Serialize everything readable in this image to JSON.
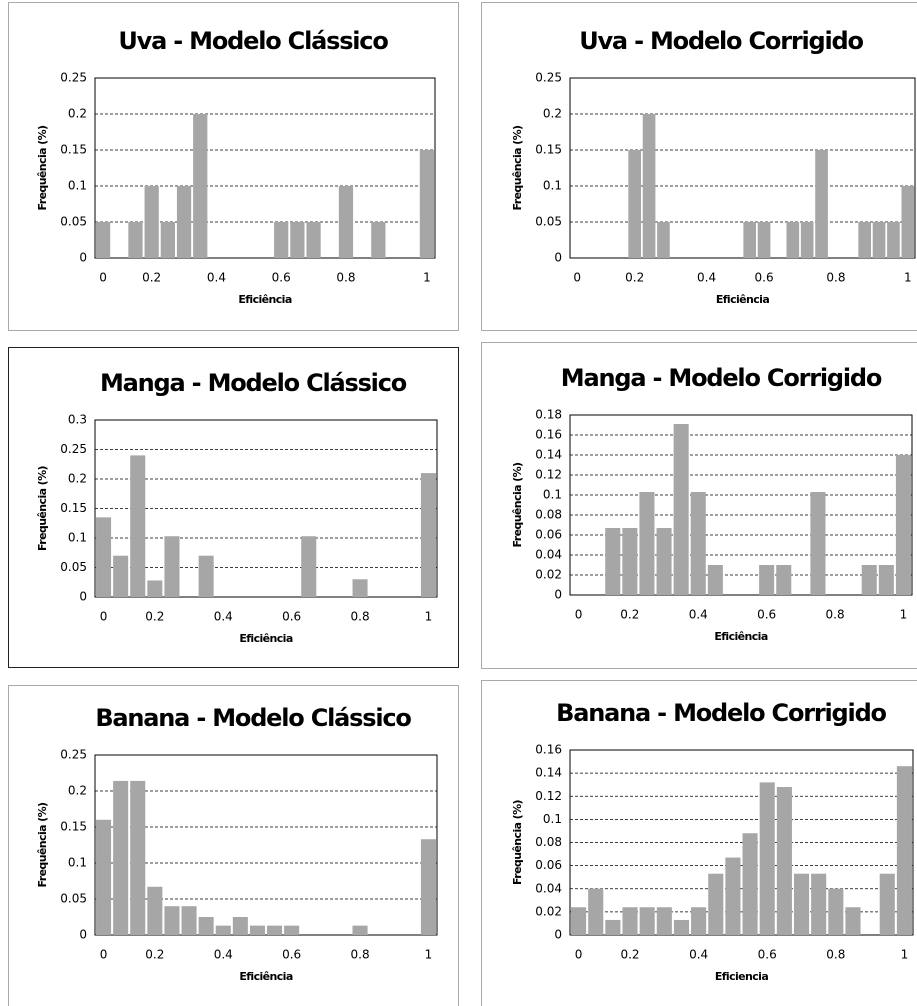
{
  "chart_data": [
    {
      "type": "bar",
      "title": "Uva - Modelo Clássico",
      "xlabel": "Eficiência",
      "ylabel": "Frequência (%)",
      "categories": [
        "0",
        null,
        null,
        "0.2",
        null,
        null,
        null,
        "0.4",
        null,
        null,
        null,
        "0.6",
        null,
        null,
        null,
        "0.8",
        null,
        null,
        null,
        null,
        "1"
      ],
      "values": [
        0.05,
        0,
        0.05,
        0.1,
        0.05,
        0.1,
        0.2,
        0,
        0,
        0,
        0,
        0.05,
        0.05,
        0.05,
        0,
        0.1,
        0,
        0.05,
        0,
        0,
        0.15
      ],
      "color": "#a6a6a6",
      "ylim": [
        0,
        0.25
      ],
      "yticks": [
        0,
        0.05,
        0.1,
        0.15,
        0.2,
        0.25
      ],
      "grid": true
    },
    {
      "type": "bar",
      "title": "Uva - Modelo Corrigido",
      "xlabel": "Eficiência",
      "ylabel": "Frequência (%)",
      "categories": [
        "0",
        null,
        null,
        null,
        "0.2",
        null,
        null,
        null,
        null,
        "0.4",
        null,
        null,
        null,
        "0.6",
        null,
        null,
        null,
        null,
        "0.8",
        null,
        null,
        null,
        null,
        "1"
      ],
      "values": [
        0,
        0,
        0,
        0,
        0.15,
        0.2,
        0.05,
        0,
        0,
        0,
        0,
        0,
        0.05,
        0.05,
        0,
        0.05,
        0.05,
        0.15,
        0,
        0,
        0.05,
        0.05,
        0.05,
        0.1
      ],
      "color": "#a6a6a6",
      "ylim": [
        0,
        0.25
      ],
      "yticks": [
        0,
        0.05,
        0.1,
        0.15,
        0.2,
        0.25
      ],
      "grid": true
    },
    {
      "type": "bar",
      "title": "Manga - Modelo Clássico",
      "xlabel": "Eficiência",
      "ylabel": "Frequência (%)",
      "categories": [
        "0",
        null,
        null,
        "0.2",
        null,
        null,
        null,
        "0.4",
        null,
        null,
        null,
        "0.6",
        null,
        null,
        null,
        "0.8",
        null,
        null,
        null,
        "1"
      ],
      "values": [
        0.135,
        0.07,
        0.24,
        0.028,
        0.103,
        0,
        0.07,
        0,
        0,
        0,
        0,
        0,
        0.103,
        0,
        0,
        0.03,
        0,
        0,
        0,
        0.21
      ],
      "color": "#a6a6a6",
      "ylim": [
        0,
        0.3
      ],
      "yticks": [
        0,
        0.05,
        0.1,
        0.15,
        0.2,
        0.25,
        0.3
      ],
      "grid": true
    },
    {
      "type": "bar",
      "title": "Manga - Modelo Corrigido",
      "xlabel": "Eficiência",
      "ylabel": "Frequência (%)",
      "categories": [
        "0",
        null,
        null,
        "0.2",
        null,
        null,
        null,
        "0.4",
        null,
        null,
        null,
        "0.6",
        null,
        null,
        null,
        "0.8",
        null,
        null,
        null,
        "1"
      ],
      "values": [
        0,
        0,
        0.067,
        0.067,
        0.103,
        0.067,
        0.171,
        0.103,
        0.03,
        0,
        0,
        0.03,
        0.03,
        0,
        0.103,
        0,
        0,
        0.03,
        0.03,
        0.14
      ],
      "color": "#a6a6a6",
      "ylim": [
        0,
        0.18
      ],
      "yticks": [
        0,
        0.02,
        0.04,
        0.06,
        0.08,
        0.1,
        0.12,
        0.14,
        0.16,
        0.18
      ],
      "grid": true
    },
    {
      "type": "bar",
      "title": "Banana - Modelo Clássico",
      "xlabel": "Eficiência",
      "ylabel": "Frequência (%)",
      "categories": [
        "0",
        null,
        null,
        "0.2",
        null,
        null,
        null,
        "0.4",
        null,
        null,
        null,
        "0.6",
        null,
        null,
        null,
        "0.8",
        null,
        null,
        null,
        "1"
      ],
      "values": [
        0.16,
        0.214,
        0.214,
        0.067,
        0.04,
        0.04,
        0.025,
        0.013,
        0.025,
        0.013,
        0.013,
        0.013,
        0,
        0,
        0,
        0.013,
        0,
        0,
        0,
        0.133
      ],
      "color": "#a6a6a6",
      "ylim": [
        0,
        0.25
      ],
      "yticks": [
        0,
        0.05,
        0.1,
        0.15,
        0.2,
        0.25
      ],
      "grid": true
    },
    {
      "type": "bar",
      "title": "Banana - Modelo Corrigido",
      "xlabel": "Eficiencia",
      "ylabel": "Frequência (%)",
      "categories": [
        "0",
        null,
        null,
        "0.2",
        null,
        null,
        null,
        "0.4",
        null,
        null,
        null,
        "0.6",
        null,
        null,
        null,
        "0.8",
        null,
        null,
        null,
        "1"
      ],
      "values": [
        0.024,
        0.04,
        0.013,
        0.024,
        0.024,
        0.024,
        0.013,
        0.024,
        0.053,
        0.067,
        0.088,
        0.132,
        0.128,
        0.053,
        0.053,
        0.04,
        0.024,
        0,
        0.053,
        0.146
      ],
      "color": "#a6a6a6",
      "ylim": [
        0,
        0.16
      ],
      "yticks": [
        0,
        0.02,
        0.04,
        0.06,
        0.08,
        0.1,
        0.12,
        0.14,
        0.16
      ],
      "grid": true
    }
  ]
}
